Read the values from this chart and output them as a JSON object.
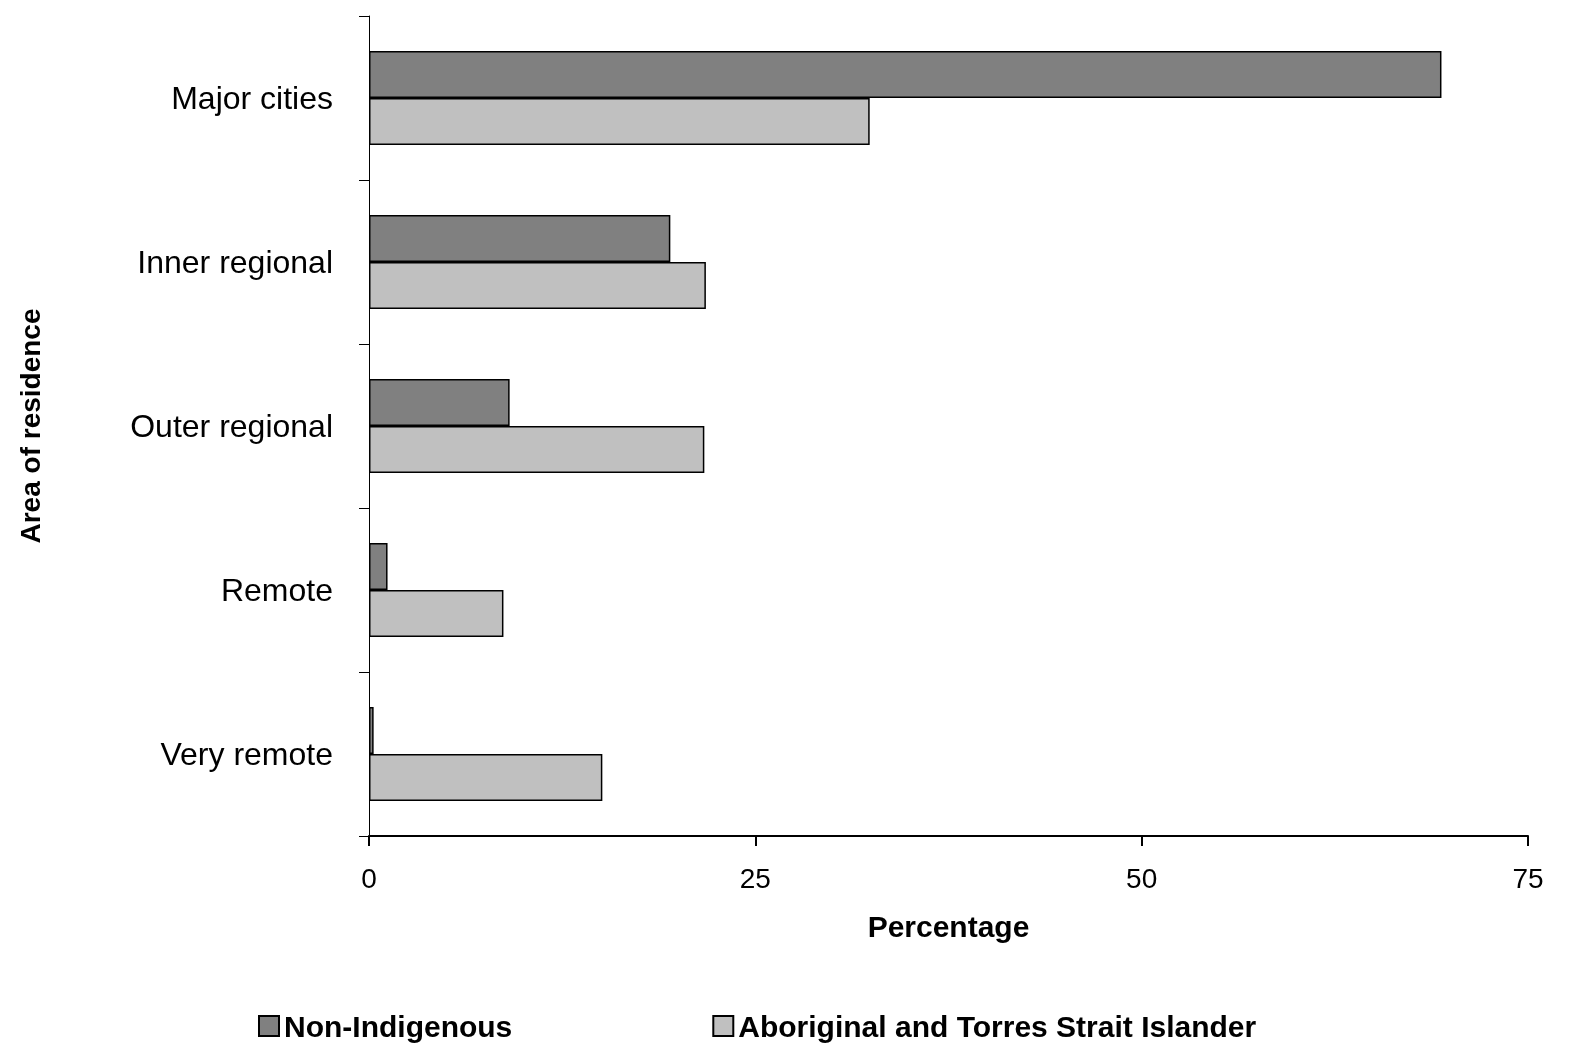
{
  "chart_data": {
    "type": "bar",
    "orientation": "horizontal",
    "xlabel": "Percentage",
    "ylabel": "Area of residence",
    "categories": [
      "Major cities",
      "Inner regional",
      "Outer regional",
      "Remote",
      "Very remote"
    ],
    "series": [
      {
        "name": "Non-Indigenous",
        "color": "#808080",
        "values": [
          69.4,
          19.5,
          9.1,
          1.2,
          0.3
        ]
      },
      {
        "name": "Aboriginal and Torres Strait Islander",
        "color": "#c0c0c0",
        "values": [
          32.4,
          21.8,
          21.7,
          8.7,
          15.1
        ]
      }
    ],
    "xlim": [
      0,
      75
    ],
    "xticks": [
      0,
      25,
      50,
      75
    ],
    "grid": false,
    "legend": "bottom"
  }
}
